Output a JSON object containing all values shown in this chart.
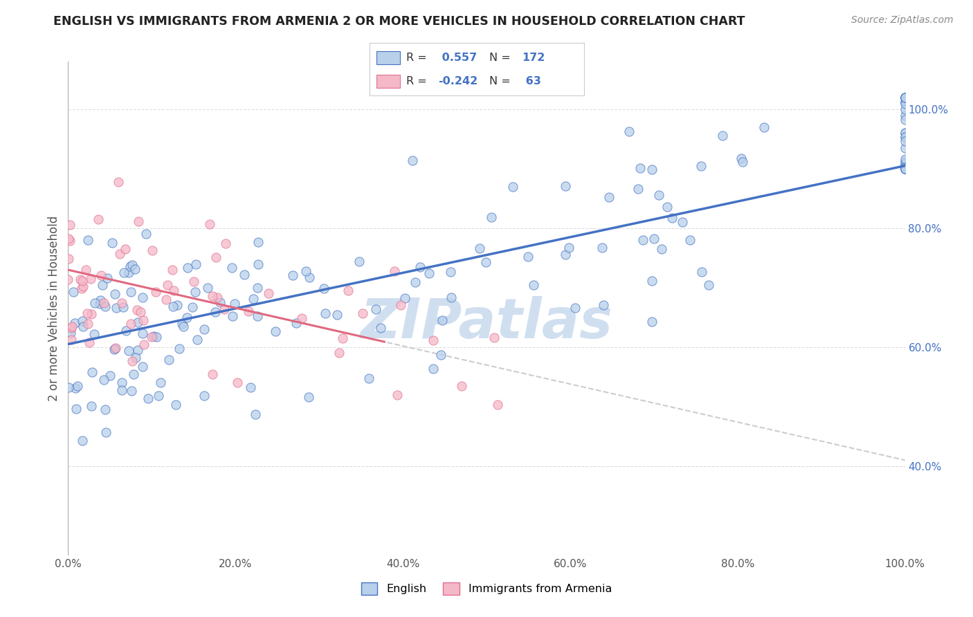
{
  "title": "ENGLISH VS IMMIGRANTS FROM ARMENIA 2 OR MORE VEHICLES IN HOUSEHOLD CORRELATION CHART",
  "source": "Source: ZipAtlas.com",
  "ylabel": "2 or more Vehicles in Household",
  "xlim": [
    0,
    100
  ],
  "ylim": [
    25,
    108
  ],
  "xticks": [
    0,
    20,
    40,
    60,
    80,
    100
  ],
  "xticklabels": [
    "0.0%",
    "20.0%",
    "40.0%",
    "60.0%",
    "80.0%",
    "100.0%"
  ],
  "ytick_vals": [
    40,
    60,
    80,
    100
  ],
  "ytick_labels": [
    "40.0%",
    "60.0%",
    "80.0%",
    "100.0%"
  ],
  "english_R": 0.557,
  "english_N": 172,
  "armenia_R": -0.242,
  "armenia_N": 63,
  "english_color": "#b8d0ea",
  "armenia_color": "#f5b8c8",
  "english_edge_color": "#4472c4",
  "armenia_edge_color": "#e07090",
  "english_line_color": "#4472c4",
  "armenia_line_color": "#e06880",
  "armenia_dash_color": "#cccccc",
  "watermark": "ZIPatlas",
  "watermark_color": "#d0dff0",
  "legend_english": "English",
  "legend_armenia": "Immigrants from Armenia",
  "background_color": "#ffffff",
  "grid_color": "#dddddd",
  "eng_slope": 0.3,
  "eng_intercept": 60.5,
  "arm_slope": -0.32,
  "arm_intercept": 73.0,
  "arm_solid_end": 38
}
